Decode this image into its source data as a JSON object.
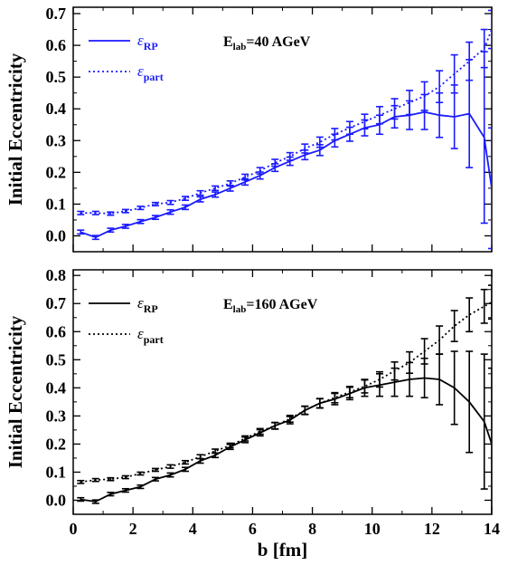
{
  "chart_data": [
    {
      "type": "line",
      "id": "top",
      "color": "#1a1aff",
      "ylabel": "Initial Eccentricity",
      "xlabel": "",
      "xlim": [
        0,
        14
      ],
      "ylim": [
        -0.05,
        0.72
      ],
      "yticks": [
        "0.0",
        "0.1",
        "0.2",
        "0.3",
        "0.4",
        "0.5",
        "0.6",
        "0.7"
      ],
      "xticks": [],
      "annotation": {
        "main": "E",
        "sub": "lab",
        "rest": "=40 AGeV"
      },
      "legend": [
        {
          "symbol": "ε",
          "sub": "RP",
          "style": "solid"
        },
        {
          "symbol": "ε",
          "sub": "part",
          "style": "dotted"
        }
      ],
      "x": [
        0.25,
        0.75,
        1.25,
        1.75,
        2.25,
        2.75,
        3.25,
        3.75,
        4.25,
        4.75,
        5.25,
        5.75,
        6.25,
        6.75,
        7.25,
        7.75,
        8.25,
        8.75,
        9.25,
        9.75,
        10.25,
        10.75,
        11.25,
        11.75,
        12.25,
        12.75,
        13.25,
        13.75,
        14.0
      ],
      "series": [
        {
          "name": "ε_RP",
          "style": "solid",
          "values": [
            0.012,
            -0.005,
            0.018,
            0.03,
            0.045,
            0.058,
            0.075,
            0.09,
            0.115,
            0.13,
            0.15,
            0.17,
            0.19,
            0.215,
            0.235,
            0.255,
            0.27,
            0.3,
            0.32,
            0.34,
            0.35,
            0.375,
            0.38,
            0.39,
            0.38,
            0.375,
            0.385,
            0.31,
            0.15
          ],
          "errors": [
            0.006,
            0.006,
            0.006,
            0.006,
            0.006,
            0.006,
            0.007,
            0.007,
            0.008,
            0.008,
            0.009,
            0.01,
            0.011,
            0.012,
            0.013,
            0.015,
            0.017,
            0.02,
            0.022,
            0.025,
            0.03,
            0.035,
            0.045,
            0.055,
            0.07,
            0.1,
            0.17,
            0.27,
            0.19
          ]
        },
        {
          "name": "ε_part",
          "style": "dotted",
          "values": [
            0.072,
            0.072,
            0.07,
            0.078,
            0.088,
            0.1,
            0.105,
            0.118,
            0.135,
            0.15,
            0.165,
            0.185,
            0.205,
            0.23,
            0.25,
            0.275,
            0.295,
            0.32,
            0.34,
            0.36,
            0.38,
            0.4,
            0.42,
            0.44,
            0.47,
            0.51,
            0.55,
            0.59,
            0.65
          ],
          "errors": [
            0.005,
            0.005,
            0.005,
            0.005,
            0.005,
            0.005,
            0.006,
            0.006,
            0.007,
            0.007,
            0.008,
            0.009,
            0.01,
            0.011,
            0.012,
            0.014,
            0.016,
            0.018,
            0.02,
            0.023,
            0.027,
            0.032,
            0.038,
            0.045,
            0.05,
            0.06,
            0.06,
            0.06,
            0.06
          ]
        }
      ]
    },
    {
      "type": "line",
      "id": "bottom",
      "color": "#000000",
      "ylabel": "Initial Eccentricity",
      "xlabel": "b [fm]",
      "xlim": [
        0,
        14
      ],
      "ylim": [
        -0.05,
        0.82
      ],
      "yticks": [
        "0.0",
        "0.1",
        "0.2",
        "0.3",
        "0.4",
        "0.5",
        "0.6",
        "0.7",
        "0.8"
      ],
      "xticks": [
        "0",
        "2",
        "4",
        "6",
        "8",
        "10",
        "12",
        "14"
      ],
      "annotation": {
        "main": "E",
        "sub": "lab",
        "rest": "=160 AGeV"
      },
      "legend": [
        {
          "symbol": "ε",
          "sub": "RP",
          "style": "solid"
        },
        {
          "symbol": "ε",
          "sub": "part",
          "style": "dotted"
        }
      ],
      "x": [
        0.25,
        0.75,
        1.25,
        1.75,
        2.25,
        2.75,
        3.25,
        3.75,
        4.25,
        4.75,
        5.25,
        5.75,
        6.25,
        6.75,
        7.25,
        7.75,
        8.25,
        8.75,
        9.25,
        9.75,
        10.25,
        10.75,
        11.25,
        11.75,
        12.25,
        12.75,
        13.25,
        13.75,
        14.0
      ],
      "series": [
        {
          "name": "ε_RP",
          "style": "solid",
          "values": [
            0.003,
            -0.005,
            0.022,
            0.035,
            0.048,
            0.075,
            0.09,
            0.11,
            0.14,
            0.16,
            0.19,
            0.215,
            0.24,
            0.265,
            0.285,
            0.32,
            0.345,
            0.36,
            0.38,
            0.4,
            0.41,
            0.42,
            0.43,
            0.435,
            0.43,
            0.4,
            0.35,
            0.28,
            0.2
          ],
          "errors": [
            0.006,
            0.006,
            0.006,
            0.006,
            0.006,
            0.006,
            0.007,
            0.007,
            0.008,
            0.008,
            0.009,
            0.01,
            0.011,
            0.012,
            0.013,
            0.015,
            0.017,
            0.02,
            0.022,
            0.03,
            0.04,
            0.05,
            0.06,
            0.07,
            0.09,
            0.13,
            0.18,
            0.24,
            0.27
          ]
        },
        {
          "name": "ε_part",
          "style": "dotted",
          "values": [
            0.065,
            0.072,
            0.075,
            0.082,
            0.095,
            0.108,
            0.12,
            0.135,
            0.155,
            0.175,
            0.195,
            0.22,
            0.245,
            0.265,
            0.29,
            0.32,
            0.345,
            0.365,
            0.385,
            0.405,
            0.43,
            0.46,
            0.49,
            0.53,
            0.57,
            0.62,
            0.66,
            0.69,
            0.705
          ],
          "errors": [
            0.005,
            0.005,
            0.005,
            0.005,
            0.005,
            0.005,
            0.006,
            0.006,
            0.007,
            0.007,
            0.008,
            0.009,
            0.01,
            0.011,
            0.012,
            0.014,
            0.016,
            0.018,
            0.02,
            0.023,
            0.027,
            0.032,
            0.038,
            0.045,
            0.05,
            0.055,
            0.06,
            0.06,
            0.06
          ]
        }
      ]
    }
  ]
}
